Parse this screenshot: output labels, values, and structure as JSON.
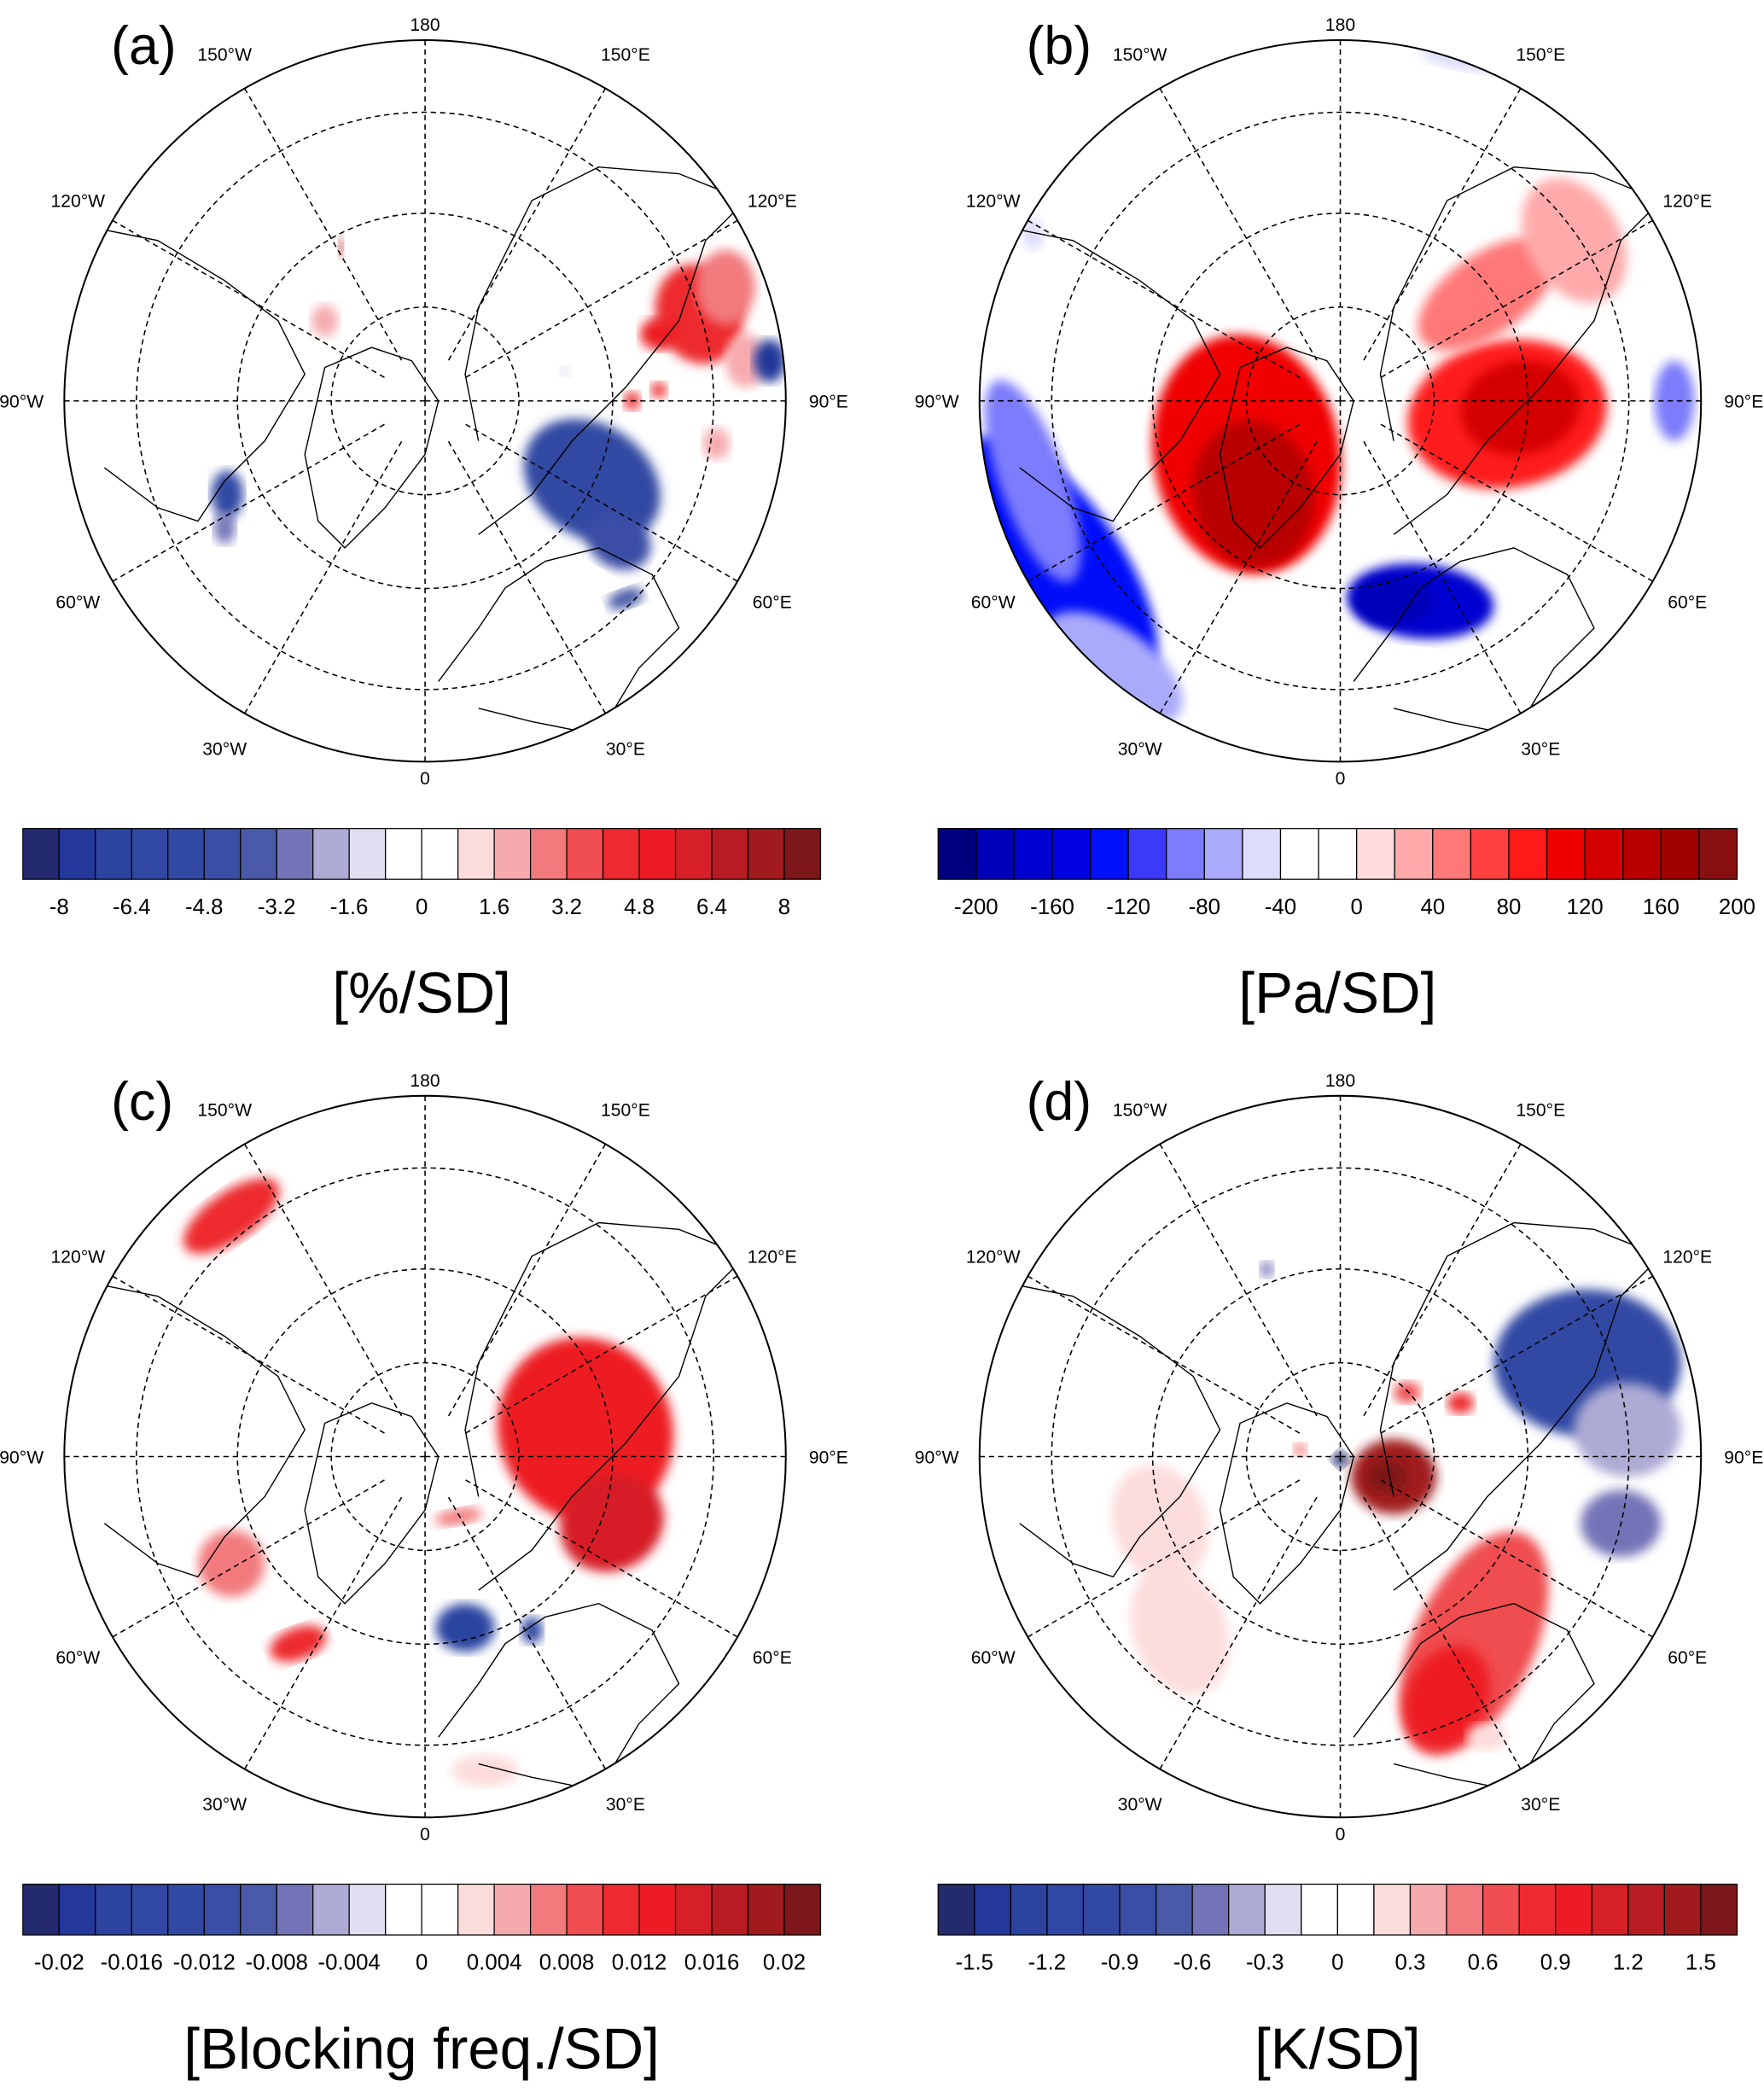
{
  "panels": [
    {
      "label": "(a)",
      "units": "[%/SD]",
      "colorbar": {
        "ticks": [
          "-8",
          "-6.4",
          "-4.8",
          "-3.2",
          "-1.6",
          "0",
          "1.6",
          "3.2",
          "4.8",
          "6.4",
          "8"
        ]
      }
    },
    {
      "label": "(b)",
      "units": "[Pa/SD]",
      "colorbar": {
        "ticks": [
          "-200",
          "-160",
          "-120",
          "-80",
          "-40",
          "0",
          "40",
          "80",
          "120",
          "160",
          "200"
        ]
      }
    },
    {
      "label": "(c)",
      "units": "[Blocking freq./SD]",
      "colorbar": {
        "ticks": [
          "-0.02",
          "-0.016",
          "-0.012",
          "-0.008",
          "-0.004",
          "0",
          "0.004",
          "0.008",
          "0.012",
          "0.016",
          "0.02"
        ]
      }
    },
    {
      "label": "(d)",
      "units": "[K/SD]",
      "colorbar": {
        "ticks": [
          "-1.5",
          "-1.2",
          "-0.9",
          "-0.6",
          "-0.3",
          "0",
          "0.3",
          "0.6",
          "0.9",
          "1.2",
          "1.5"
        ]
      }
    }
  ],
  "longitude_labels": {
    "lon180": "180",
    "lon150e": "150°E",
    "lon120e": "120°E",
    "lon90e": "90°E",
    "lon60e": "60°E",
    "lon30e": "30°E",
    "lon0": "0",
    "lon30w": "30°W",
    "lon60w": "60°W",
    "lon90w": "90°W",
    "lon120w": "120°W",
    "lon150w": "150°W"
  },
  "colors": {
    "palette_a_c_d": [
      "#232a6e",
      "#24379a",
      "#2c44a0",
      "#3048a3",
      "#3249a4",
      "#3a4ea6",
      "#4a5aa8",
      "#7473b8",
      "#adaad4",
      "#e0def0",
      "#ffffff",
      "#ffffff",
      "#fddcdc",
      "#f5aaae",
      "#f27a7d",
      "#ef4d4f",
      "#ed2a2f",
      "#ed1c24",
      "#d61f26",
      "#b81c22",
      "#a01a1e",
      "#7e1719"
    ],
    "palette_b": [
      "#000080",
      "#0000b8",
      "#0000d0",
      "#0000e0",
      "#0010f8",
      "#3a3af8",
      "#7c7cfc",
      "#aaaafc",
      "#dcdcfc",
      "#ffffff",
      "#ffffff",
      "#ffdcdc",
      "#ffaaaa",
      "#ff7878",
      "#ff4040",
      "#ff1a1a",
      "#f00000",
      "#d40000",
      "#b80000",
      "#a00000",
      "#881010"
    ]
  }
}
